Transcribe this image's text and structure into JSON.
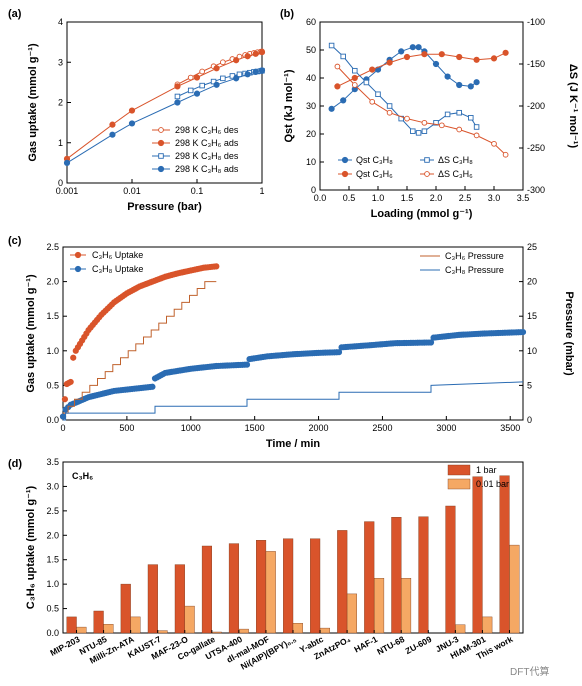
{
  "watermark": "DFT代算",
  "chart_data": [
    {
      "panel": "(a)",
      "type": "line",
      "xlabel": "Pressure (bar)",
      "ylabel": "Gas uptake (mmol g⁻¹)",
      "xscale": "log",
      "xlim": [
        0.001,
        1
      ],
      "ylim": [
        0,
        4
      ],
      "xticks": [
        "0.001",
        "0.01",
        "0.1",
        "1"
      ],
      "yticks": [
        "0",
        "1",
        "2",
        "3",
        "4"
      ],
      "legend_position": "bottom-right",
      "series": [
        {
          "name": "298 K C₃H₆ des",
          "color": "#d9542b",
          "marker": "open-circle",
          "x": [
            0.05,
            0.08,
            0.12,
            0.18,
            0.25,
            0.35,
            0.45,
            0.55,
            0.65,
            0.75,
            0.85,
            0.95,
            1.0
          ],
          "y": [
            2.45,
            2.62,
            2.77,
            2.9,
            3.0,
            3.08,
            3.14,
            3.18,
            3.21,
            3.23,
            3.25,
            3.26,
            3.27
          ]
        },
        {
          "name": "298 K C₃H₆ ads",
          "color": "#d9542b",
          "marker": "filled-circle",
          "x": [
            0.001,
            0.005,
            0.01,
            0.05,
            0.1,
            0.2,
            0.4,
            0.6,
            0.8,
            1.0
          ],
          "y": [
            0.6,
            1.45,
            1.8,
            2.4,
            2.62,
            2.85,
            3.05,
            3.15,
            3.21,
            3.25
          ]
        },
        {
          "name": "298 K C₃H₈ des",
          "color": "#2b6cb3",
          "marker": "open-square",
          "x": [
            0.05,
            0.08,
            0.12,
            0.18,
            0.25,
            0.35,
            0.45,
            0.55,
            0.65,
            0.75,
            0.85,
            0.95,
            1.0
          ],
          "y": [
            2.15,
            2.3,
            2.42,
            2.52,
            2.6,
            2.66,
            2.7,
            2.72,
            2.74,
            2.76,
            2.77,
            2.78,
            2.79
          ]
        },
        {
          "name": "298 K C₃H₈ ads",
          "color": "#2b6cb3",
          "marker": "filled-circle",
          "x": [
            0.001,
            0.005,
            0.01,
            0.05,
            0.1,
            0.2,
            0.4,
            0.6,
            0.8,
            1.0
          ],
          "y": [
            0.5,
            1.2,
            1.48,
            2.0,
            2.22,
            2.44,
            2.6,
            2.7,
            2.76,
            2.8
          ]
        }
      ]
    },
    {
      "panel": "(b)",
      "type": "line",
      "xlabel": "Loading (mmol g⁻¹)",
      "ylabel": "Qst (kJ mol⁻¹)",
      "ylabel_right": "ΔS (J K⁻¹ mol⁻¹)",
      "xlim": [
        0,
        3.5
      ],
      "ylim": [
        0,
        60
      ],
      "ylim_right": [
        -300,
        -100
      ],
      "xticks": [
        "0.0",
        "0.5",
        "1.0",
        "1.5",
        "2.0",
        "2.5",
        "3.0",
        "3.5"
      ],
      "yticks": [
        "0",
        "10",
        "20",
        "30",
        "40",
        "50",
        "60"
      ],
      "yticks_right": [
        "-100",
        "-150",
        "-200",
        "-250",
        "-300"
      ],
      "legend_position": "bottom",
      "series": [
        {
          "name": "Qst C₃H₈",
          "color": "#2b6cb3",
          "marker": "filled-circle",
          "axis": "left",
          "x": [
            0.2,
            0.4,
            0.6,
            0.8,
            1.0,
            1.2,
            1.4,
            1.6,
            1.7,
            1.8,
            2.0,
            2.2,
            2.4,
            2.6,
            2.7
          ],
          "y": [
            29,
            32,
            36,
            39.5,
            43,
            46.5,
            49.5,
            51,
            51,
            49.5,
            45,
            40.5,
            37.5,
            37,
            38.5
          ]
        },
        {
          "name": "Qst C₃H₆",
          "color": "#d9542b",
          "marker": "filled-circle",
          "axis": "left",
          "x": [
            0.3,
            0.6,
            0.9,
            1.2,
            1.5,
            1.8,
            2.1,
            2.4,
            2.7,
            3.0,
            3.2
          ],
          "y": [
            37,
            40,
            43,
            45.5,
            47.5,
            48.5,
            48.5,
            47.5,
            46.5,
            47,
            49
          ]
        },
        {
          "name": "ΔS C₃H₈",
          "color": "#2b6cb3",
          "marker": "open-square",
          "axis": "right",
          "x": [
            0.2,
            0.4,
            0.6,
            0.8,
            1.0,
            1.2,
            1.4,
            1.6,
            1.7,
            1.8,
            2.0,
            2.2,
            2.4,
            2.6,
            2.7
          ],
          "y": [
            -128,
            -141,
            -158,
            -172,
            -186,
            -200,
            -215,
            -230,
            -232,
            -230,
            -220,
            -210,
            -208,
            -214,
            -225
          ]
        },
        {
          "name": "ΔS C₃H₆",
          "color": "#d9542b",
          "marker": "open-circle",
          "axis": "right",
          "x": [
            0.3,
            0.6,
            0.9,
            1.2,
            1.5,
            1.8,
            2.1,
            2.4,
            2.7,
            3.0,
            3.2
          ],
          "y": [
            -153,
            -175,
            -195,
            -208,
            -215,
            -220,
            -223,
            -228,
            -235,
            -245,
            -258
          ]
        }
      ]
    },
    {
      "panel": "(c)",
      "type": "line",
      "xlabel": "Time / min",
      "ylabel": "Gas uptake (mmol g⁻¹)",
      "ylabel_right": "Pressure (mbar)",
      "xlim": [
        0,
        3600
      ],
      "ylim": [
        0,
        2.5
      ],
      "ylim_right": [
        0,
        25
      ],
      "xticks": [
        "0",
        "500",
        "1000",
        "1500",
        "2000",
        "2500",
        "3000",
        "3500"
      ],
      "yticks": [
        "0.0",
        "0.5",
        "1.0",
        "1.5",
        "2.0",
        "2.5"
      ],
      "yticks_right": [
        "0",
        "5",
        "10",
        "15",
        "20",
        "25"
      ],
      "legends": [
        {
          "position": "top-left",
          "entries": [
            "C₃H₆ Uptake",
            "C₃H₈ Uptake"
          ]
        },
        {
          "position": "top-right",
          "entries": [
            "C₃H₆ Pressure",
            "C₃H₈ Pressure"
          ]
        }
      ],
      "series": [
        {
          "name": "C₃H₆ Uptake",
          "color": "#d9542b",
          "marker": "filled-circle",
          "axis": "left",
          "x": [
            0,
            15,
            30,
            60,
            80,
            100,
            150,
            200,
            300,
            400,
            500,
            600,
            700,
            800,
            900,
            1000,
            1100,
            1200
          ],
          "y": [
            0.05,
            0.3,
            0.52,
            0.55,
            0.9,
            1.0,
            1.15,
            1.3,
            1.52,
            1.7,
            1.83,
            1.93,
            2.0,
            2.07,
            2.12,
            2.16,
            2.2,
            2.22
          ]
        },
        {
          "name": "C₃H₈ Uptake",
          "color": "#2b6cb3",
          "marker": "filled-circle",
          "axis": "left",
          "x": [
            0,
            20,
            60,
            100,
            200,
            400,
            700,
            720,
            800,
            1000,
            1200,
            1440,
            1460,
            1600,
            1800,
            2000,
            2160,
            2180,
            2400,
            2600,
            2880,
            2900,
            3100,
            3300,
            3600
          ],
          "y": [
            0.05,
            0.15,
            0.22,
            0.25,
            0.33,
            0.42,
            0.48,
            0.6,
            0.68,
            0.74,
            0.78,
            0.8,
            0.88,
            0.92,
            0.95,
            0.97,
            0.98,
            1.05,
            1.08,
            1.11,
            1.12,
            1.19,
            1.23,
            1.25,
            1.27
          ]
        },
        {
          "name": "C₃H₆ Pressure",
          "color": "#c0622d",
          "marker": "none",
          "axis": "right",
          "x": [
            0,
            40,
            40,
            90,
            90,
            150,
            150,
            210,
            210,
            270,
            270,
            330,
            330,
            390,
            390,
            450,
            450,
            510,
            510,
            570,
            570,
            630,
            630,
            690,
            690,
            750,
            750,
            810,
            810,
            870,
            870,
            930,
            930,
            990,
            990,
            1050,
            1050,
            1110,
            1110,
            1200
          ],
          "y": [
            1,
            1,
            2,
            2,
            3,
            3,
            4,
            4,
            5,
            5,
            6,
            6,
            7,
            7,
            8,
            8,
            9,
            9,
            10,
            10,
            11,
            11,
            12,
            12,
            13,
            13,
            14,
            14,
            15,
            15,
            16,
            16,
            17,
            17,
            18,
            18,
            19,
            19,
            20,
            20
          ]
        },
        {
          "name": "C₃H₈ Pressure",
          "color": "#2b6cb3",
          "marker": "none",
          "axis": "right",
          "x": [
            0,
            20,
            20,
            720,
            720,
            1440,
            1440,
            2160,
            2160,
            2880,
            2880,
            3600
          ],
          "y": [
            0,
            0,
            1,
            1,
            2,
            2,
            3,
            3,
            4,
            4,
            5,
            5.5
          ]
        }
      ]
    },
    {
      "panel": "(d)",
      "type": "bar",
      "annotation": "C₃H₆",
      "ylabel": "C₃H₆ uptake (mmol g⁻¹)",
      "ylim": [
        0,
        3.5
      ],
      "yticks": [
        "0.0",
        "0.5",
        "1.0",
        "1.5",
        "2.0",
        "2.5",
        "3.0",
        "3.5"
      ],
      "legend_position": "top-right",
      "categories": [
        "MIP-203",
        "NTU-85",
        "Milli-Zn-ATA",
        "KAUST-7",
        "MAF-23-O",
        "Co-gallate",
        "UTSA-400",
        "dl-mal-MOF",
        "Ni(AIP)(BPY)₀.₅",
        "Y-abtc",
        "ZnAtzPO₄",
        "HAF-1",
        "NTU-68",
        "ZU-609",
        "JNU-3",
        "HIAM-301",
        "This work"
      ],
      "series": [
        {
          "name": "1 bar",
          "color": "#d9542b",
          "values": [
            0.33,
            0.45,
            1.0,
            1.4,
            1.4,
            1.78,
            1.83,
            1.9,
            1.93,
            1.93,
            2.1,
            2.28,
            2.37,
            2.38,
            2.6,
            3.2,
            3.22
          ]
        },
        {
          "name": "0.01 bar",
          "color": "#f5a864",
          "values": [
            0.12,
            0.18,
            0.33,
            0.05,
            0.55,
            0.02,
            0.08,
            1.67,
            0.2,
            0.1,
            0.8,
            1.12,
            1.12,
            0.0,
            0.17,
            0.33,
            1.8
          ]
        }
      ]
    }
  ]
}
